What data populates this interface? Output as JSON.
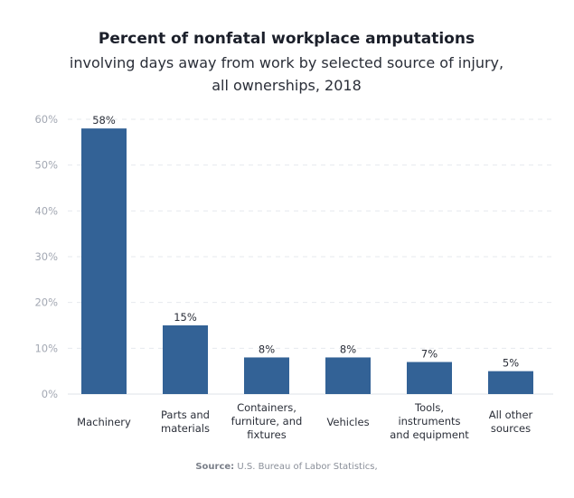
{
  "chart_data": {
    "type": "bar",
    "title": "Percent of nonfatal workplace amputations",
    "subtitle": [
      "involving days away from work by selected source of injury,",
      "all ownerships, 2018"
    ],
    "categories": [
      [
        "Machinery"
      ],
      [
        "Parts and",
        "materials"
      ],
      [
        "Containers,",
        "furniture, and",
        "fixtures"
      ],
      [
        "Vehicles"
      ],
      [
        "Tools,",
        "instruments",
        "and equipment"
      ],
      [
        "All other",
        "sources"
      ]
    ],
    "values": [
      58,
      15,
      8,
      8,
      7,
      5
    ],
    "data_labels": [
      "58%",
      "15%",
      "8%",
      "8%",
      "7%",
      "5%"
    ],
    "ylim": [
      0,
      60
    ],
    "yticks": [
      0,
      10,
      20,
      30,
      40,
      50,
      60
    ],
    "ytick_labels": [
      "0%",
      "10%",
      "20%",
      "30%",
      "40%",
      "50%",
      "60%"
    ],
    "grid": true,
    "bar_color": "#336296",
    "source_label": "Source:",
    "source_text": "U.S. Bureau of Labor Statistics,"
  }
}
